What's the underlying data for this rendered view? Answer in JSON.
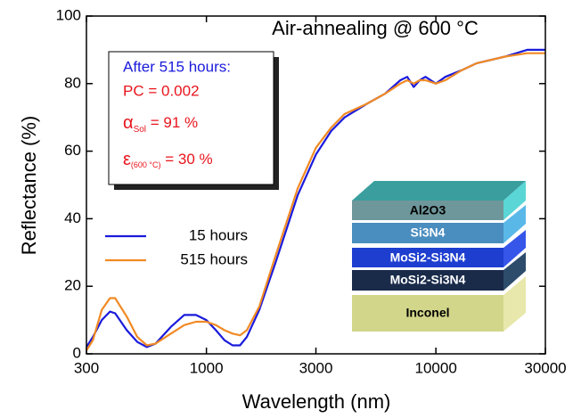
{
  "chart_data": {
    "type": "line",
    "title": "Air-annealing @ 600 °C",
    "x_label": "Wavelength (nm)",
    "y_label": "Reflectance (%)",
    "x_log": true,
    "xlim": [
      300,
      30000
    ],
    "xticks": [
      300,
      1000,
      3000,
      10000,
      30000
    ],
    "ylim": [
      0,
      100
    ],
    "yticks": [
      0,
      20,
      40,
      60,
      80,
      100
    ],
    "legend": "center left",
    "x": [
      300,
      320,
      350,
      380,
      400,
      450,
      500,
      550,
      600,
      700,
      800,
      900,
      1000,
      1100,
      1200,
      1300,
      1400,
      1500,
      1700,
      2000,
      2500,
      3000,
      3500,
      4000,
      5000,
      6000,
      7000,
      7500,
      8000,
      8500,
      9000,
      10000,
      11000,
      13000,
      15000,
      20000,
      25000,
      30000
    ],
    "series": [
      {
        "name": "15 hours",
        "color": "#1a1adc",
        "values": [
          2,
          5,
          10,
          12.5,
          12,
          7,
          3.5,
          2,
          3,
          8,
          11.5,
          11.5,
          10,
          7,
          4,
          2.5,
          2.5,
          5,
          13,
          27,
          47,
          59,
          66,
          70,
          74,
          77,
          81,
          82,
          79,
          81,
          82,
          80,
          82,
          84,
          86,
          88,
          90,
          90
        ]
      },
      {
        "name": "515 hours",
        "color": "#f08a24",
        "values": [
          1,
          4,
          13,
          16.5,
          16.5,
          11,
          5,
          2.5,
          3,
          6,
          8.5,
          9.5,
          9.5,
          8.5,
          7,
          6,
          5.5,
          7,
          14,
          29,
          49,
          61,
          67,
          71,
          74,
          77,
          80,
          81,
          80,
          81,
          81,
          80,
          81,
          84,
          86,
          88,
          89,
          89
        ]
      }
    ],
    "annotation": {
      "heading": "After 515 hours:",
      "pc": "PC = 0.002",
      "alpha": {
        "symbol": "α",
        "subscript": "Sol",
        "text": " = 91 %"
      },
      "epsilon": {
        "symbol": "ε",
        "subscript": "(600 °C)",
        "text": " = 30 %"
      }
    },
    "layers": [
      "Al2O3",
      "Si3N4",
      "MoSi2-Si3N4",
      "MoSi2-Si3N4",
      "Inconel"
    ]
  }
}
